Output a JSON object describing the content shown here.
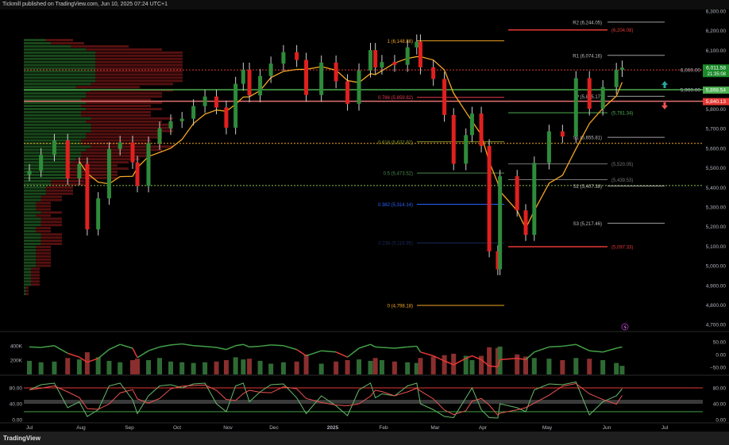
{
  "header": {
    "published": "Tickmill published on TradingView.com, Jun 10, 2025 07:24 UTC+1"
  },
  "footer": {
    "brand": "TradingView",
    "brand_icon": "tradingview-logo-icon"
  },
  "colors": {
    "up": "#2e8b3a",
    "down": "#e0201f",
    "ma": "#f5a623",
    "bg": "#000000"
  },
  "chart_data": {
    "type": "candlestick",
    "price_axis": {
      "ticks": [
        6300,
        6200,
        6100,
        6000,
        5900,
        5800,
        5700,
        5600,
        5500,
        5400,
        5300,
        5200,
        5100,
        5000,
        4900,
        4800,
        4700
      ],
      "labels": [
        "6,300.00",
        "6,200.00",
        "6,100.00",
        "6,000.00",
        "5,900.00",
        "5,800.00",
        "5,700.00",
        "5,600.00",
        "5,500.00",
        "5,400.00",
        "5,300.00",
        "5,200.00",
        "5,100.00",
        "5,000.00",
        "4,900.00",
        "4,800.00",
        "4,700.00"
      ],
      "range": [
        4700,
        6300
      ]
    },
    "time_axis": [
      {
        "label": "Jul",
        "date": "2024-07-01"
      },
      {
        "label": "Aug",
        "date": "2024-08-01"
      },
      {
        "label": "Sep",
        "date": "2024-09-01"
      },
      {
        "label": "Oct",
        "date": "2024-10-01"
      },
      {
        "label": "Nov",
        "date": "2024-11-01"
      },
      {
        "label": "Dec",
        "date": "2024-12-01"
      },
      {
        "label": "2025",
        "date": "2025-01-01"
      },
      {
        "label": "Feb",
        "date": "2025-02-01"
      },
      {
        "label": "Mar",
        "date": "2025-03-01"
      },
      {
        "label": "Apr",
        "date": "2025-04-01"
      },
      {
        "label": "May",
        "date": "2025-05-01"
      },
      {
        "label": "Jun",
        "date": "2025-06-01"
      },
      {
        "label": "Jul",
        "date": "2025-07-01"
      }
    ],
    "last_price": {
      "value": "6,011.58",
      "countdown": "21:35:08"
    },
    "price_markers": [
      {
        "label": "5,898.54",
        "price": 5898.54,
        "color": "#4caf50"
      },
      {
        "label": "5,840.13",
        "price": 5840.13,
        "color": "#e53935"
      }
    ],
    "bars": [
      {
        "d": "2024-07-01",
        "c": 5486,
        "v": 190,
        "o": 30,
        "k": 75
      },
      {
        "d": "2024-07-08",
        "c": 5567,
        "v": 170,
        "o": 28,
        "k": 88
      },
      {
        "d": "2024-07-16",
        "c": 5640,
        "v": 180,
        "o": 35,
        "k": 92
      },
      {
        "d": "2024-07-24",
        "c": 5446,
        "v": 230,
        "o": 5,
        "k": 30
      },
      {
        "d": "2024-07-31",
        "c": 5520,
        "v": 210,
        "o": -10,
        "k": 45
      },
      {
        "d": "2024-08-05",
        "c": 5186,
        "v": 310,
        "o": -30,
        "k": 8
      },
      {
        "d": "2024-08-12",
        "c": 5344,
        "v": 240,
        "o": -15,
        "k": 25
      },
      {
        "d": "2024-08-19",
        "c": 5597,
        "v": 190,
        "o": 20,
        "k": 85
      },
      {
        "d": "2024-08-26",
        "c": 5630,
        "v": 170,
        "o": 40,
        "k": 92
      },
      {
        "d": "2024-09-03",
        "c": 5528,
        "v": 200,
        "o": 25,
        "k": 50
      },
      {
        "d": "2024-09-06",
        "c": 5408,
        "v": 220,
        "o": -12,
        "k": 15
      },
      {
        "d": "2024-09-13",
        "c": 5626,
        "v": 200,
        "o": 15,
        "k": 60
      },
      {
        "d": "2024-09-20",
        "c": 5702,
        "v": 230,
        "o": 30,
        "k": 85
      },
      {
        "d": "2024-09-27",
        "c": 5738,
        "v": 180,
        "o": 38,
        "k": 88
      },
      {
        "d": "2024-10-04",
        "c": 5751,
        "v": 170,
        "o": 42,
        "k": 80
      },
      {
        "d": "2024-10-11",
        "c": 5815,
        "v": 160,
        "o": 35,
        "k": 90
      },
      {
        "d": "2024-10-18",
        "c": 5864,
        "v": 170,
        "o": 32,
        "k": 92
      },
      {
        "d": "2024-10-25",
        "c": 5808,
        "v": 180,
        "o": 28,
        "k": 40
      },
      {
        "d": "2024-10-31",
        "c": 5705,
        "v": 200,
        "o": 20,
        "k": 20
      },
      {
        "d": "2024-11-06",
        "c": 5929,
        "v": 240,
        "o": 35,
        "k": 85
      },
      {
        "d": "2024-11-11",
        "c": 6001,
        "v": 210,
        "o": 40,
        "k": 92
      },
      {
        "d": "2024-11-15",
        "c": 5870,
        "v": 220,
        "o": 30,
        "k": 45
      },
      {
        "d": "2024-11-22",
        "c": 5969,
        "v": 190,
        "o": 33,
        "k": 70
      },
      {
        "d": "2024-11-29",
        "c": 6032,
        "v": 150,
        "o": 38,
        "k": 88
      },
      {
        "d": "2024-12-06",
        "c": 6090,
        "v": 170,
        "o": 35,
        "k": 90
      },
      {
        "d": "2024-12-13",
        "c": 6051,
        "v": 180,
        "o": 20,
        "k": 55
      },
      {
        "d": "2024-12-18",
        "c": 5872,
        "v": 280,
        "o": -5,
        "k": 15
      },
      {
        "d": "2024-12-26",
        "c": 6037,
        "v": 150,
        "o": 15,
        "k": 60
      },
      {
        "d": "2025-01-03",
        "c": 5942,
        "v": 180,
        "o": 10,
        "k": 35
      },
      {
        "d": "2025-01-10",
        "c": 5827,
        "v": 200,
        "o": -10,
        "k": 10
      },
      {
        "d": "2025-01-17",
        "c": 5997,
        "v": 210,
        "o": 25,
        "k": 75
      },
      {
        "d": "2025-01-24",
        "c": 6101,
        "v": 190,
        "o": 40,
        "k": 92
      },
      {
        "d": "2025-01-27",
        "c": 6012,
        "v": 230,
        "o": 30,
        "k": 55
      },
      {
        "d": "2025-01-31",
        "c": 6040,
        "v": 200,
        "o": 28,
        "k": 65
      },
      {
        "d": "2025-02-07",
        "c": 6026,
        "v": 180,
        "o": 25,
        "k": 60
      },
      {
        "d": "2025-02-14",
        "c": 6115,
        "v": 170,
        "o": 30,
        "k": 85
      },
      {
        "d": "2025-02-19",
        "c": 6144,
        "v": 160,
        "o": 33,
        "k": 92
      },
      {
        "d": "2025-02-21",
        "c": 6013,
        "v": 230,
        "o": 10,
        "k": 40
      },
      {
        "d": "2025-02-28",
        "c": 5954,
        "v": 250,
        "o": -5,
        "k": 25
      },
      {
        "d": "2025-03-07",
        "c": 5770,
        "v": 270,
        "o": -25,
        "k": 8
      },
      {
        "d": "2025-03-13",
        "c": 5521,
        "v": 290,
        "o": -40,
        "k": 5
      },
      {
        "d": "2025-03-21",
        "c": 5667,
        "v": 260,
        "o": -15,
        "k": 55
      },
      {
        "d": "2025-03-25",
        "c": 5777,
        "v": 200,
        "o": -5,
        "k": 80
      },
      {
        "d": "2025-03-31",
        "c": 5612,
        "v": 260,
        "o": -20,
        "k": 25
      },
      {
        "d": "2025-04-04",
        "c": 5074,
        "v": 380,
        "o": -45,
        "k": 5
      },
      {
        "d": "2025-04-08",
        "c": 4982,
        "v": 370,
        "o": -48,
        "k": 4
      },
      {
        "d": "2025-04-09",
        "c": 5457,
        "v": 390,
        "o": -20,
        "k": 40
      },
      {
        "d": "2025-04-17",
        "c": 5283,
        "v": 280,
        "o": -15,
        "k": 30
      },
      {
        "d": "2025-04-21",
        "c": 5158,
        "v": 250,
        "o": -20,
        "k": 20
      },
      {
        "d": "2025-04-25",
        "c": 5525,
        "v": 230,
        "o": 10,
        "k": 75
      },
      {
        "d": "2025-05-02",
        "c": 5686,
        "v": 220,
        "o": 30,
        "k": 90
      },
      {
        "d": "2025-05-09",
        "c": 5660,
        "v": 200,
        "o": 33,
        "k": 88
      },
      {
        "d": "2025-05-16",
        "c": 5958,
        "v": 230,
        "o": 40,
        "k": 95
      },
      {
        "d": "2025-05-23",
        "c": 5802,
        "v": 220,
        "o": 15,
        "k": 12
      },
      {
        "d": "2025-05-30",
        "c": 5912,
        "v": 200,
        "o": 10,
        "k": 45
      },
      {
        "d": "2025-06-06",
        "c": 6000,
        "v": 160,
        "o": 25,
        "k": 60
      },
      {
        "d": "2025-06-09",
        "c": 6011.58,
        "v": 120,
        "o": 30,
        "k": 78
      }
    ],
    "fibonacci": [
      {
        "level": "1",
        "label": "1 (6,148.88)",
        "price": 6148.88,
        "color": "#f5a623"
      },
      {
        "level": "0.786",
        "label": "0.786 (5,859.82)",
        "price": 5859.82,
        "color": "#e53950"
      },
      {
        "level": "0.618",
        "label": "0.618 (5,632.92)",
        "price": 5632.92,
        "color": "#8a9a2a"
      },
      {
        "level": "0.5",
        "label": "0.5 (5,473.52)",
        "price": 5473.52,
        "color": "#4c8a4c"
      },
      {
        "level": "0.382",
        "label": "0.382 (5,314.14)",
        "price": 5314.14,
        "color": "#2962ff"
      },
      {
        "level": "0.236",
        "label": "0.236 (5,116.95)",
        "price": 5116.95,
        "color": "#1e2a5a"
      },
      {
        "level": "0",
        "label": "0 (4,798.18)",
        "price": 4798.18,
        "color": "#f5a623"
      }
    ],
    "pivots": [
      {
        "label": "R2 (6,244.05)",
        "price": 6244.05,
        "color": "#9e9e9e"
      },
      {
        "label": "R1 (6,074.16)",
        "price": 6074.16,
        "color": "#9e9e9e"
      },
      {
        "label": "P (5,865.17)",
        "price": 5865.17,
        "color": "#9e9e9e"
      },
      {
        "label": "S1 (5,655.81)",
        "price": 5655.81,
        "color": "#9e9e9e"
      },
      {
        "label": "S2 (5,407.38)",
        "price": 5407.38,
        "color": "#9e9e9e"
      },
      {
        "label": "S3 (5,217.46)",
        "price": 5217.46,
        "color": "#9e9e9e"
      }
    ],
    "side_levels": [
      {
        "label": "(6,204.08)",
        "price": 6204.08,
        "color": "#e53935"
      },
      {
        "label": "(5,781.34)",
        "price": 5781.34,
        "color": "#4caf50"
      },
      {
        "label": "(5,520.05)",
        "price": 5520.05,
        "color": "#777777"
      },
      {
        "label": "(5,439.53)",
        "price": 5439.53,
        "color": "#777777"
      },
      {
        "label": "(5,097.33)",
        "price": 5097.33,
        "color": "#e53935"
      }
    ],
    "horizontal_lines": [
      {
        "price": 6000,
        "color": "#e53935",
        "style": "dotted"
      },
      {
        "price": 5898.54,
        "color": "#4caf50",
        "style": "solid"
      },
      {
        "price": 5840.13,
        "color": "#e57373",
        "style": "solid"
      },
      {
        "price": 5625,
        "color": "#f5a623",
        "style": "dotted"
      },
      {
        "price": 5410,
        "color": "#8bc34a",
        "style": "dotted"
      }
    ],
    "volume_pane": {
      "left_ticks": [
        "400K",
        "200K"
      ],
      "left_values": [
        400,
        200
      ],
      "right_ticks": [
        "50.00",
        "0.00",
        "−50.00"
      ],
      "right_values": [
        50,
        0,
        -50
      ]
    },
    "stoch_pane": {
      "ticks": [
        "80.00",
        "40.00",
        "0.00"
      ],
      "values": [
        80,
        40,
        0
      ],
      "upper": 80,
      "lower": 20
    }
  },
  "icons": {
    "up_arrow": "arrow-up-icon",
    "down_arrow": "arrow-down-icon",
    "flash": "lightning-icon"
  }
}
